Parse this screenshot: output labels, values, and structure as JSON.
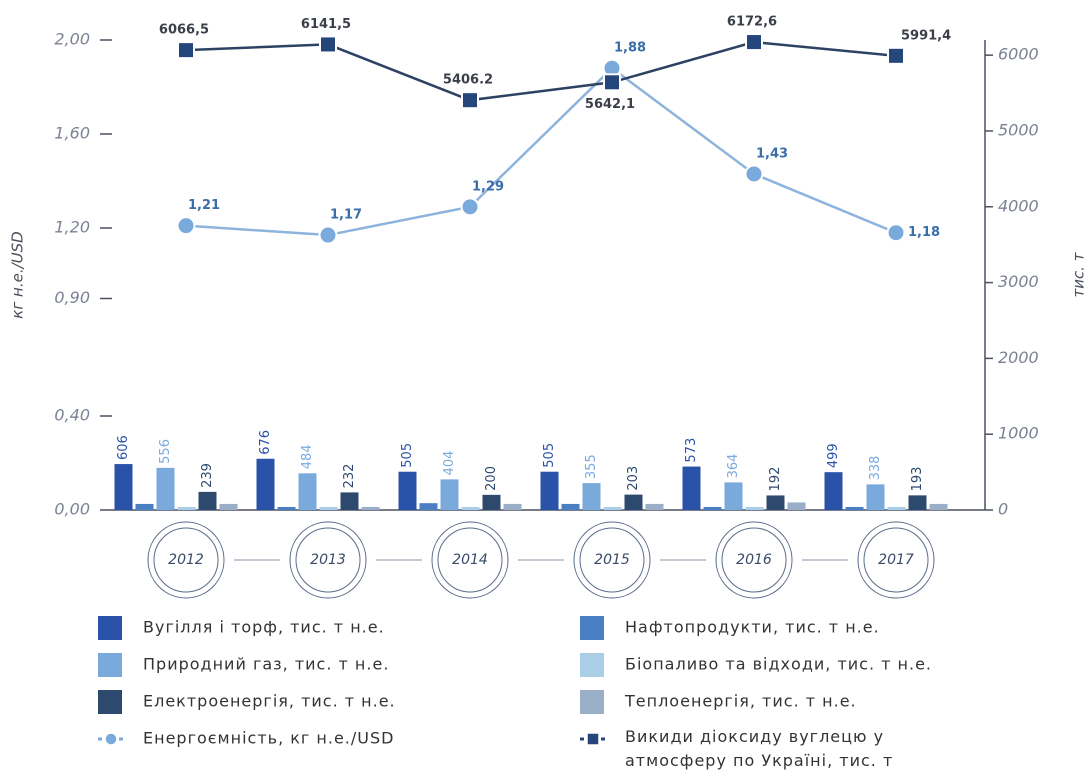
{
  "chart_data": {
    "type": "combo",
    "categories": [
      "2012",
      "2013",
      "2014",
      "2015",
      "2016",
      "2017"
    ],
    "ylabel": "кг н.е./USD",
    "y2label": "тис. т",
    "ylim": [
      0,
      2
    ],
    "yticks": [
      {
        "value": 0,
        "label": "0,00"
      },
      {
        "value": 0.4,
        "label": "0,40"
      },
      {
        "value": 0.9,
        "label": "0,90"
      },
      {
        "value": 1.2,
        "label": "1,20"
      },
      {
        "value": 1.6,
        "label": "1,60"
      },
      {
        "value": 2,
        "label": "2,00"
      }
    ],
    "y2lim": [
      0,
      6200
    ],
    "y2ticks": [
      0,
      1000,
      2000,
      3000,
      4000,
      5000,
      6000
    ],
    "series": [
      {
        "name": "Вугілля і торф, тис. т н.е.",
        "type": "bar",
        "axis": "y2",
        "color": "#2a52a8",
        "values": [
          606,
          676,
          505,
          505,
          573,
          499
        ],
        "value_labels": [
          "606",
          "676",
          "505",
          "505",
          "573",
          "499"
        ]
      },
      {
        "name": "Нафтопродукти, тис. т н.е.",
        "type": "bar",
        "axis": "y2",
        "color": "#4a7fc4",
        "values": [
          80,
          40,
          90,
          80,
          40,
          40
        ]
      },
      {
        "name": "Природний газ, тис. т н.е.",
        "type": "bar",
        "axis": "y2",
        "color": "#7aaadc",
        "values": [
          556,
          484,
          404,
          355,
          364,
          338
        ],
        "value_labels": [
          "556",
          "484",
          "404",
          "355",
          "364",
          "338"
        ]
      },
      {
        "name": "Біопаливо та відходи, тис. т н.е.",
        "type": "bar",
        "axis": "y2",
        "color": "#aacde8",
        "values": [
          40,
          40,
          40,
          40,
          40,
          40
        ]
      },
      {
        "name": "Електроенергія, тис. т н.е.",
        "type": "bar",
        "axis": "y2",
        "color": "#2d4a6e",
        "values": [
          239,
          232,
          200,
          203,
          192,
          193
        ],
        "value_labels": [
          "239",
          "232",
          "200",
          "203",
          "192",
          "193"
        ]
      },
      {
        "name": "Теплоенергія, тис. т н.е.",
        "type": "bar",
        "axis": "y2",
        "color": "#9aaec8",
        "values": [
          80,
          40,
          80,
          80,
          100,
          80
        ]
      },
      {
        "name": "Енергоємність, кг н.е./USD",
        "type": "line",
        "axis": "y",
        "color": "#7aaadc",
        "values": [
          1.21,
          1.17,
          1.29,
          1.88,
          1.43,
          1.18
        ],
        "value_labels": [
          "1,21",
          "1,17",
          "1,29",
          "1,88",
          "1,43",
          "1,18"
        ]
      },
      {
        "name": "Викиди діоксиду вуглецю у атмосферу по Україні, тис. т",
        "type": "line",
        "axis": "y2",
        "color": "#24467a",
        "values": [
          6066.5,
          6141.5,
          5406.2,
          5642.1,
          6172.6,
          5991.4
        ],
        "value_labels": [
          "6066,5",
          "6141,5",
          "5406.2",
          "5642,1",
          "6172,6",
          "5991,4"
        ]
      }
    ]
  }
}
